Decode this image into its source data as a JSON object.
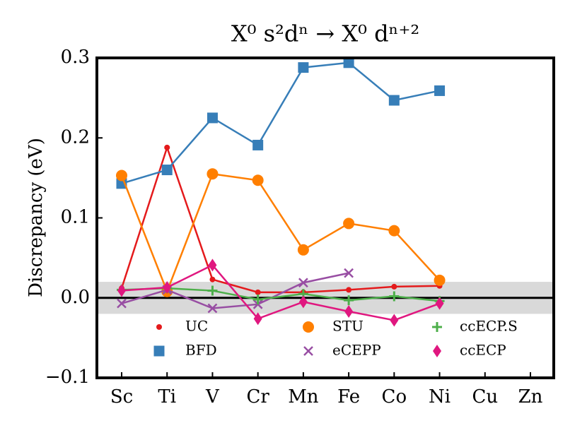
{
  "chart_data": {
    "type": "line",
    "title": "X⁰ s²dⁿ → X⁰ dⁿ⁺²",
    "y_label": "Discrepancy (eV)",
    "categories": [
      "Sc",
      "Ti",
      "V",
      "Cr",
      "Mn",
      "Fe",
      "Co",
      "Ni",
      "Cu",
      "Zn"
    ],
    "ylim": [
      -0.1,
      0.3
    ],
    "yticks": [
      {
        "value": -0.1,
        "label": "−0.1"
      },
      {
        "value": 0,
        "label": "0.0"
      },
      {
        "value": 0.1,
        "label": "0.1"
      },
      {
        "value": 0.2,
        "label": "0.2"
      },
      {
        "value": 0.3,
        "label": "0.3"
      }
    ],
    "reference_line": 0,
    "shaded_band": [
      -0.02,
      0.02
    ],
    "legend_position": "lower center",
    "series": [
      {
        "name": "UC",
        "color": "#e41a1c",
        "marker": "dot",
        "values": [
          0.012,
          0.188,
          0.023,
          0.007,
          0.007,
          0.01,
          0.014,
          0.015,
          null,
          null
        ]
      },
      {
        "name": "BFD",
        "color": "#377eb8",
        "marker": "square",
        "values": [
          0.143,
          0.16,
          0.225,
          0.191,
          0.288,
          0.294,
          0.247,
          0.259,
          null,
          null
        ]
      },
      {
        "name": "STU",
        "color": "#ff7f00",
        "marker": "circle",
        "values": [
          0.153,
          0.008,
          0.155,
          0.147,
          0.06,
          0.093,
          0.084,
          0.022,
          null,
          null
        ]
      },
      {
        "name": "eCEPP",
        "color": "#984ea3",
        "marker": "x",
        "values": [
          -0.007,
          0.01,
          -0.013,
          -0.008,
          0.019,
          0.031,
          null,
          null,
          null,
          null
        ]
      },
      {
        "name": "ccECP.S",
        "color": "#4daf4a",
        "marker": "plus",
        "values": [
          0.01,
          0.012,
          0.009,
          -0.002,
          0.005,
          -0.003,
          0.002,
          -0.004,
          null,
          null
        ]
      },
      {
        "name": "ccECP",
        "color": "#e0177f",
        "marker": "diamond",
        "values": [
          0.009,
          0.013,
          0.041,
          -0.026,
          -0.005,
          -0.017,
          -0.028,
          -0.007,
          null,
          null
        ]
      }
    ]
  }
}
